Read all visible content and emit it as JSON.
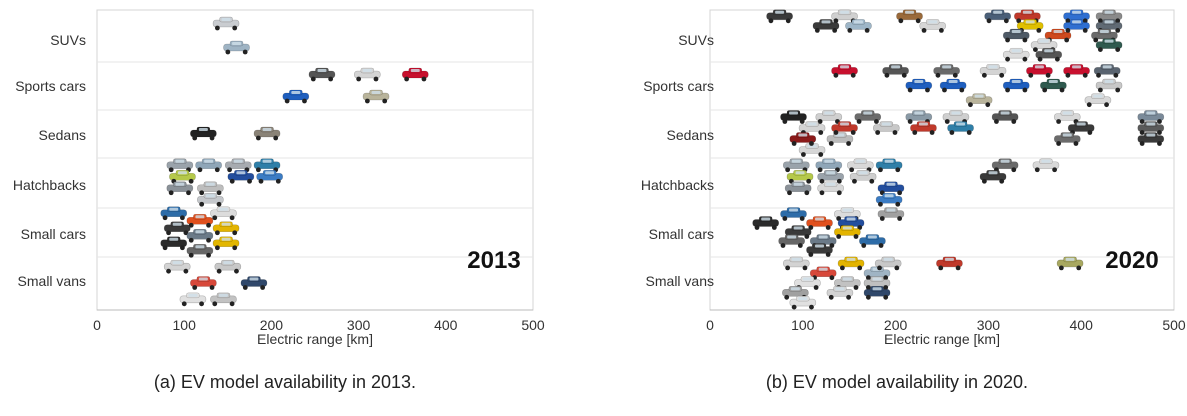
{
  "chart_data": [
    {
      "type": "scatter",
      "panel": "a",
      "year_label": "2013",
      "caption": "(a) EV model availability in 2013.",
      "xlabel": "Electric range [km]",
      "ylabel": "",
      "xlim": [
        0,
        500
      ],
      "xticks": [
        0,
        100,
        200,
        300,
        400,
        500
      ],
      "categories": [
        "SUVs",
        "Sports cars",
        "Sedans",
        "Hatchbacks",
        "Small cars",
        "Small vans"
      ],
      "grid": "horizontal",
      "series": [
        {
          "category": "SUVs",
          "points": [
            {
              "x": 148,
              "color": "#c9ccd0"
            },
            {
              "x": 160,
              "color": "#9fb4c4"
            }
          ]
        },
        {
          "category": "Sports cars",
          "points": [
            {
              "x": 258,
              "color": "#555555"
            },
            {
              "x": 310,
              "color": "#d4d4d4"
            },
            {
              "x": 365,
              "color": "#c8102e"
            },
            {
              "x": 228,
              "color": "#1f5fbf"
            },
            {
              "x": 320,
              "color": "#b9b49b"
            }
          ]
        },
        {
          "category": "Sedans",
          "points": [
            {
              "x": 122,
              "color": "#222222"
            },
            {
              "x": 195,
              "color": "#8a8377"
            }
          ]
        },
        {
          "category": "Hatchbacks",
          "points": [
            {
              "x": 95,
              "color": "#9aa3ab"
            },
            {
              "x": 128,
              "color": "#8fa6b8"
            },
            {
              "x": 162,
              "color": "#a7abb0"
            },
            {
              "x": 195,
              "color": "#2f7fa8"
            },
            {
              "x": 98,
              "color": "#b5c94a"
            },
            {
              "x": 130,
              "color": "#bdbdbd"
            },
            {
              "x": 165,
              "color": "#234e9e"
            },
            {
              "x": 95,
              "color": "#8b9299"
            },
            {
              "x": 130,
              "color": "#c4c7cb"
            },
            {
              "x": 198,
              "color": "#3b7cc4"
            }
          ]
        },
        {
          "category": "Small cars",
          "points": [
            {
              "x": 88,
              "color": "#2d6ca8"
            },
            {
              "x": 118,
              "color": "#e0501e"
            },
            {
              "x": 145,
              "color": "#dcdcdc"
            },
            {
              "x": 92,
              "color": "#3a3a3a"
            },
            {
              "x": 118,
              "color": "#6b7a88"
            },
            {
              "x": 148,
              "color": "#e3b400"
            },
            {
              "x": 88,
              "color": "#2b2b2b"
            },
            {
              "x": 118,
              "color": "#666666"
            },
            {
              "x": 148,
              "color": "#e2b600"
            }
          ]
        },
        {
          "category": "Small vans",
          "points": [
            {
              "x": 92,
              "color": "#d3d3d3"
            },
            {
              "x": 122,
              "color": "#d7483a"
            },
            {
              "x": 150,
              "color": "#c8c8c8"
            },
            {
              "x": 145,
              "color": "#c2c2c2"
            },
            {
              "x": 110,
              "color": "#e0e0e0"
            },
            {
              "x": 180,
              "color": "#30486b"
            }
          ]
        }
      ]
    },
    {
      "type": "scatter",
      "panel": "b",
      "year_label": "2020",
      "caption": "(b) EV model availability in 2020.",
      "xlabel": "Electric range [km]",
      "ylabel": "",
      "xlim": [
        0,
        500
      ],
      "xticks": [
        0,
        100,
        200,
        300,
        400,
        500
      ],
      "categories": [
        "SUVs",
        "Sports cars",
        "Sedans",
        "Hatchbacks",
        "Small cars",
        "Small vans"
      ],
      "grid": "horizontal",
      "series": [
        {
          "category": "SUVs",
          "points": [
            {
              "x": 75,
              "color": "#3a3a3a"
            },
            {
              "x": 145,
              "color": "#d0d0d0"
            },
            {
              "x": 215,
              "color": "#9a6a3a"
            },
            {
              "x": 310,
              "color": "#4a5f78"
            },
            {
              "x": 342,
              "color": "#c0392b"
            },
            {
              "x": 395,
              "color": "#2f6fd1"
            },
            {
              "x": 430,
              "color": "#8a8a8a"
            },
            {
              "x": 345,
              "color": "#e0c000"
            },
            {
              "x": 375,
              "color": "#cf4a1e"
            },
            {
              "x": 430,
              "color": "#606a74"
            },
            {
              "x": 125,
              "color": "#3a3a3a"
            },
            {
              "x": 160,
              "color": "#9eb6c8"
            },
            {
              "x": 240,
              "color": "#d6d6d6"
            },
            {
              "x": 330,
              "color": "#4e5a66"
            },
            {
              "x": 360,
              "color": "#d8d8d8"
            },
            {
              "x": 425,
              "color": "#6b6b6b"
            },
            {
              "x": 330,
              "color": "#dcdcdc"
            },
            {
              "x": 365,
              "color": "#555555"
            },
            {
              "x": 395,
              "color": "#2f6fd1"
            },
            {
              "x": 430,
              "color": "#2f5a4f"
            }
          ]
        },
        {
          "category": "Sports cars",
          "points": [
            {
              "x": 145,
              "color": "#c8102e"
            },
            {
              "x": 200,
              "color": "#555555"
            },
            {
              "x": 255,
              "color": "#6a6a6a"
            },
            {
              "x": 305,
              "color": "#d4d4d4"
            },
            {
              "x": 355,
              "color": "#c8102e"
            },
            {
              "x": 395,
              "color": "#c8102e"
            },
            {
              "x": 428,
              "color": "#5a6470"
            },
            {
              "x": 225,
              "color": "#1f5fbf"
            },
            {
              "x": 262,
              "color": "#1f5fbf"
            },
            {
              "x": 290,
              "color": "#b9b49b"
            },
            {
              "x": 330,
              "color": "#1f5fbf"
            },
            {
              "x": 370,
              "color": "#2f5a4f"
            },
            {
              "x": 430,
              "color": "#c8c8c8"
            },
            {
              "x": 418,
              "color": "#d8d8d8"
            }
          ]
        },
        {
          "category": "Sedans",
          "points": [
            {
              "x": 90,
              "color": "#222222"
            },
            {
              "x": 128,
              "color": "#d0d0d0"
            },
            {
              "x": 318,
              "color": "#555555"
            },
            {
              "x": 385,
              "color": "#d8d8d8"
            },
            {
              "x": 475,
              "color": "#7a8a99"
            },
            {
              "x": 110,
              "color": "#d4d4d4"
            },
            {
              "x": 140,
              "color": "#bbbbbb"
            },
            {
              "x": 170,
              "color": "#6b6b6b"
            },
            {
              "x": 225,
              "color": "#8a9aa6"
            },
            {
              "x": 265,
              "color": "#cfcfcf"
            },
            {
              "x": 400,
              "color": "#3a3a3a"
            },
            {
              "x": 475,
              "color": "#5a5a5a"
            },
            {
              "x": 110,
              "color": "#d6d6d6"
            },
            {
              "x": 145,
              "color": "#c0392b"
            },
            {
              "x": 190,
              "color": "#c8c8c8"
            },
            {
              "x": 230,
              "color": "#c0392b"
            },
            {
              "x": 270,
              "color": "#2f7fa8"
            },
            {
              "x": 385,
              "color": "#6b6b6b"
            },
            {
              "x": 475,
              "color": "#3a3a3a"
            },
            {
              "x": 100,
              "color": "#8b1a1a"
            }
          ]
        },
        {
          "category": "Hatchbacks",
          "points": [
            {
              "x": 93,
              "color": "#9aa3ab"
            },
            {
              "x": 128,
              "color": "#8fa6b8"
            },
            {
              "x": 162,
              "color": "#d8d8d8"
            },
            {
              "x": 193,
              "color": "#2f7fa8"
            },
            {
              "x": 318,
              "color": "#6b6b6b"
            },
            {
              "x": 362,
              "color": "#d8d8d8"
            },
            {
              "x": 97,
              "color": "#b5c94a"
            },
            {
              "x": 130,
              "color": "#9aa3ab"
            },
            {
              "x": 165,
              "color": "#cfcfcf"
            },
            {
              "x": 195,
              "color": "#234e9e"
            },
            {
              "x": 305,
              "color": "#3a3a3a"
            },
            {
              "x": 95,
              "color": "#8b9299"
            },
            {
              "x": 130,
              "color": "#d8d8d8"
            },
            {
              "x": 193,
              "color": "#3b7cc4"
            }
          ]
        },
        {
          "category": "Small cars",
          "points": [
            {
              "x": 90,
              "color": "#2d6ca8"
            },
            {
              "x": 118,
              "color": "#e0501e"
            },
            {
              "x": 148,
              "color": "#dcdcdc"
            },
            {
              "x": 95,
              "color": "#3a3a3a"
            },
            {
              "x": 122,
              "color": "#6b7a88"
            },
            {
              "x": 152,
              "color": "#234e9e"
            },
            {
              "x": 195,
              "color": "#a0a0a0"
            },
            {
              "x": 60,
              "color": "#2b2b2b"
            },
            {
              "x": 88,
              "color": "#666666"
            },
            {
              "x": 118,
              "color": "#3a3a3a"
            },
            {
              "x": 148,
              "color": "#e3b400"
            },
            {
              "x": 175,
              "color": "#2d6ca8"
            }
          ]
        },
        {
          "category": "Small vans",
          "points": [
            {
              "x": 93,
              "color": "#d3d3d3"
            },
            {
              "x": 122,
              "color": "#d7483a"
            },
            {
              "x": 152,
              "color": "#e3b400"
            },
            {
              "x": 180,
              "color": "#9fb4c4"
            },
            {
              "x": 258,
              "color": "#c0392b"
            },
            {
              "x": 192,
              "color": "#c8c8c8"
            },
            {
              "x": 105,
              "color": "#e0e0e0"
            },
            {
              "x": 148,
              "color": "#c2c2c2"
            },
            {
              "x": 180,
              "color": "#c0c0c0"
            },
            {
              "x": 92,
              "color": "#a0a0a0"
            },
            {
              "x": 100,
              "color": "#e0e0e0"
            },
            {
              "x": 140,
              "color": "#d3d3d3"
            },
            {
              "x": 180,
              "color": "#30486b"
            },
            {
              "x": 388,
              "color": "#a8a860"
            }
          ]
        }
      ]
    }
  ]
}
